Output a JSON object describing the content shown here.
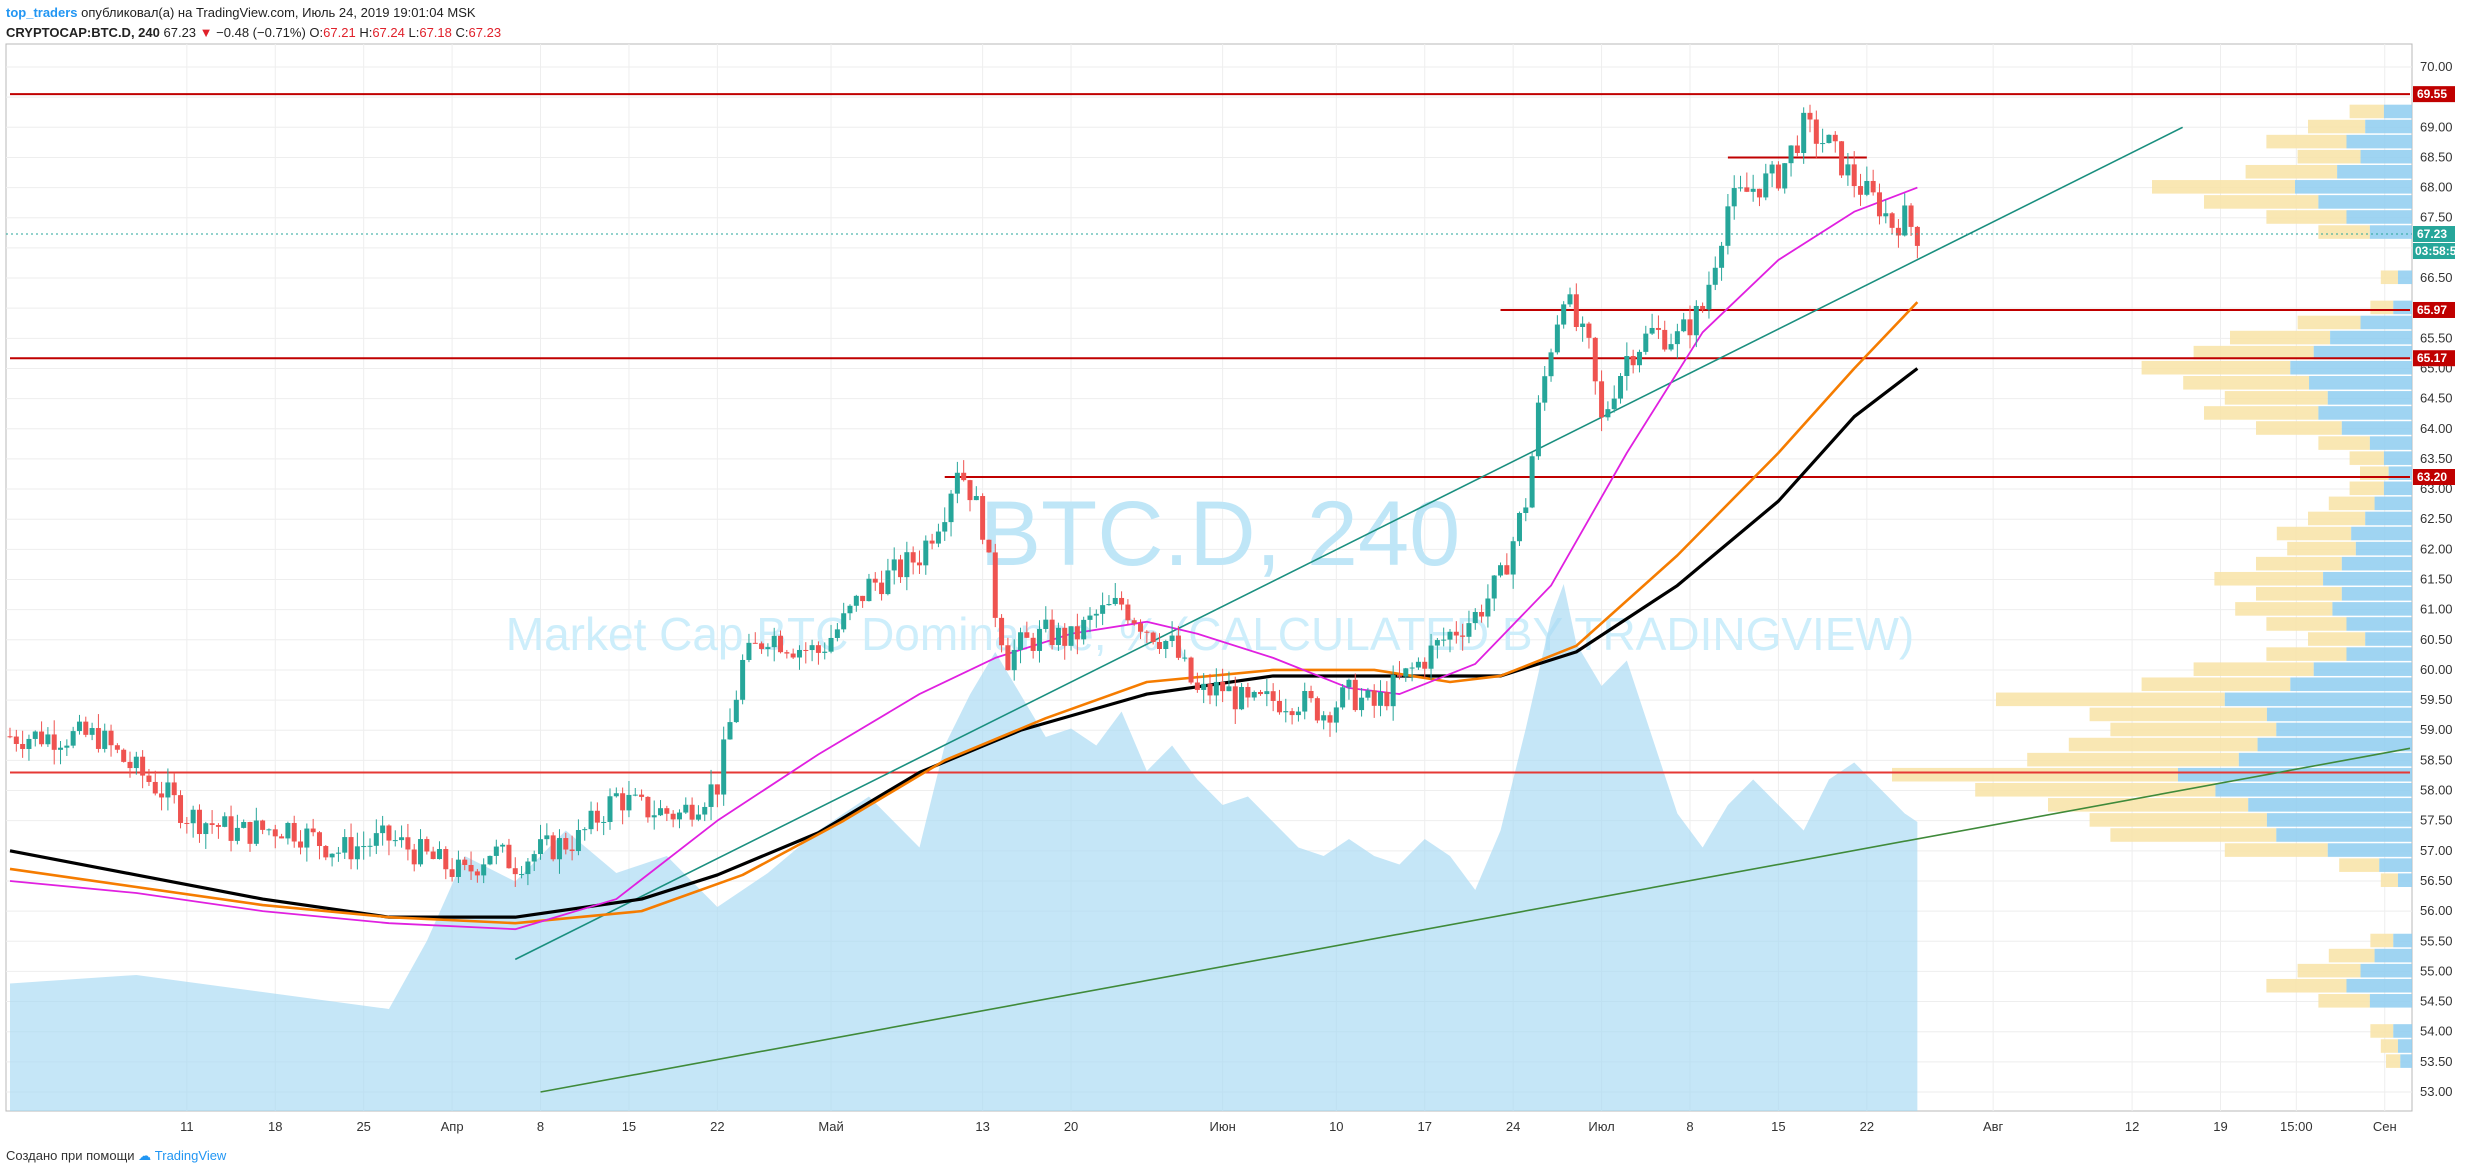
{
  "header": {
    "author": "top_traders",
    "published_text": "опубликовал(а) на TradingView.com, Июль 24, 2019 19:01:04 MSK",
    "symbol": "CRYPTOCAP:BTC.D, 240",
    "last": "67.23",
    "arrow": "▼",
    "change": "−0.48 (−0.71%)",
    "o_label": "O:",
    "o_value": "67.21",
    "h_label": "H:",
    "h_value": "67.24",
    "l_label": "L:",
    "l_value": "67.18",
    "c_label": "C:",
    "c_value": "67.23"
  },
  "watermark": {
    "symbol": "BTC.D, 240",
    "description": "Market Cap BTC Dominance, % (CALCULATED BY TRADINGVIEW)"
  },
  "footer": {
    "created_with": "Создано при помощи",
    "brand": "TradingView"
  },
  "colors": {
    "up": "#26a69a",
    "down": "#ef5350",
    "level": "#c00000",
    "teal_line": "#1a8f7f",
    "green_line": "#3f8a3a",
    "magenta": "#e020e0",
    "orange": "#f57c00",
    "black": "#000000",
    "volume": "#a6d9f3",
    "vp_blue": "#8ecdf0",
    "vp_yellow": "#f8e3a6"
  },
  "chart_data": {
    "type": "candlestick",
    "y_axis": {
      "min": 53.0,
      "max": 70.0,
      "step": 0.5,
      "ticks": [
        "70.00",
        "69.50",
        "69.00",
        "68.50",
        "68.00",
        "67.50",
        "67.00",
        "66.50",
        "66.00",
        "65.50",
        "65.00",
        "64.50",
        "64.00",
        "63.50",
        "63.00",
        "62.50",
        "62.00",
        "61.50",
        "61.00",
        "60.50",
        "60.00",
        "59.50",
        "59.00",
        "58.50",
        "58.00",
        "57.50",
        "57.00",
        "56.50",
        "56.00",
        "55.50",
        "55.00",
        "54.50",
        "54.00",
        "53.50",
        "53.00"
      ]
    },
    "x_axis": {
      "ticks": [
        {
          "label": "11",
          "d": 14
        },
        {
          "label": "18",
          "d": 21
        },
        {
          "label": "25",
          "d": 28
        },
        {
          "label": "Апр",
          "d": 35
        },
        {
          "label": "8",
          "d": 42
        },
        {
          "label": "15",
          "d": 49
        },
        {
          "label": "22",
          "d": 56
        },
        {
          "label": "Май",
          "d": 65
        },
        {
          "label": "13",
          "d": 77
        },
        {
          "label": "20",
          "d": 84
        },
        {
          "label": "Июн",
          "d": 96
        },
        {
          "label": "10",
          "d": 105
        },
        {
          "label": "17",
          "d": 112
        },
        {
          "label": "24",
          "d": 119
        },
        {
          "label": "Июл",
          "d": 126
        },
        {
          "label": "8",
          "d": 133
        },
        {
          "label": "15",
          "d": 140
        },
        {
          "label": "22",
          "d": 147
        },
        {
          "label": "Авг",
          "d": 157
        },
        {
          "label": "12",
          "d": 168
        },
        {
          "label": "19",
          "d": 175
        },
        {
          "label": "15:00",
          "d": 181
        },
        {
          "label": "Сен",
          "d": 188
        }
      ]
    },
    "price_points": [
      [
        7,
        58.9
      ],
      [
        9,
        58.5
      ],
      [
        12,
        58.0
      ],
      [
        14,
        57.6
      ],
      [
        18,
        57.3
      ],
      [
        22,
        57.4
      ],
      [
        26,
        57.0
      ],
      [
        30,
        57.2
      ],
      [
        33,
        56.9
      ],
      [
        36,
        56.6
      ],
      [
        38,
        57.0
      ],
      [
        40,
        56.8
      ],
      [
        42,
        57.0
      ],
      [
        45,
        57.2
      ],
      [
        48,
        57.9
      ],
      [
        50,
        57.7
      ],
      [
        53,
        57.6
      ],
      [
        56,
        58.1
      ],
      [
        58,
        60.1
      ],
      [
        60,
        60.6
      ],
      [
        62,
        60.4
      ],
      [
        64,
        60.3
      ],
      [
        66,
        60.8
      ],
      [
        68,
        61.4
      ],
      [
        70,
        61.6
      ],
      [
        72,
        61.9
      ],
      [
        74,
        62.7
      ],
      [
        75,
        63.4
      ],
      [
        76,
        63.0
      ],
      [
        77,
        62.4
      ],
      [
        78,
        61.0
      ],
      [
        79,
        60.2
      ],
      [
        80,
        60.4
      ],
      [
        82,
        60.6
      ],
      [
        84,
        60.5
      ],
      [
        86,
        60.9
      ],
      [
        88,
        61.1
      ],
      [
        90,
        60.7
      ],
      [
        92,
        60.4
      ],
      [
        94,
        59.6
      ],
      [
        96,
        59.7
      ],
      [
        98,
        59.4
      ],
      [
        100,
        59.5
      ],
      [
        102,
        59.5
      ],
      [
        104,
        59.3
      ],
      [
        106,
        59.6
      ],
      [
        108,
        59.4
      ],
      [
        110,
        59.8
      ],
      [
        112,
        60.2
      ],
      [
        114,
        60.6
      ],
      [
        116,
        60.9
      ],
      [
        118,
        61.5
      ],
      [
        120,
        62.8
      ],
      [
        121,
        64.3
      ],
      [
        122,
        65.4
      ],
      [
        123,
        66.3
      ],
      [
        124,
        65.7
      ],
      [
        125,
        65.3
      ],
      [
        126,
        64.1
      ],
      [
        127,
        64.7
      ],
      [
        128,
        65.2
      ],
      [
        130,
        65.6
      ],
      [
        132,
        65.5
      ],
      [
        134,
        66.0
      ],
      [
        136,
        67.7
      ],
      [
        138,
        68.0
      ],
      [
        140,
        68.2
      ],
      [
        142,
        69.0
      ],
      [
        144,
        68.7
      ],
      [
        146,
        68.1
      ],
      [
        148,
        67.7
      ],
      [
        149,
        67.4
      ],
      [
        150,
        67.5
      ],
      [
        151,
        67.23
      ]
    ],
    "levels": [
      "69.55",
      "65.97",
      "65.17",
      "63.20"
    ],
    "last_price_label": "67.23",
    "countdown_label": "03:58:5",
    "series": [
      {
        "name": "",
        "points": [
          [
            0,
            57.0
          ],
          [
            10,
            56.6
          ],
          [
            20,
            56.2
          ],
          [
            30,
            55.9
          ],
          [
            40,
            55.9
          ],
          [
            50,
            56.2
          ],
          [
            56,
            56.6
          ],
          [
            64,
            57.3
          ],
          [
            72,
            58.3
          ],
          [
            80,
            59.0
          ],
          [
            90,
            59.6
          ],
          [
            100,
            59.9
          ],
          [
            110,
            59.9
          ],
          [
            118,
            59.9
          ],
          [
            124,
            60.3
          ],
          [
            132,
            61.4
          ],
          [
            140,
            62.8
          ],
          [
            146,
            64.2
          ],
          [
            151,
            65.0
          ]
        ]
      },
      {
        "name": "",
        "points": [
          [
            0,
            56.7
          ],
          [
            10,
            56.4
          ],
          [
            20,
            56.1
          ],
          [
            30,
            55.9
          ],
          [
            40,
            55.8
          ],
          [
            50,
            56.0
          ],
          [
            58,
            56.6
          ],
          [
            66,
            57.5
          ],
          [
            74,
            58.5
          ],
          [
            82,
            59.2
          ],
          [
            90,
            59.8
          ],
          [
            100,
            60.0
          ],
          [
            108,
            60.0
          ],
          [
            114,
            59.8
          ],
          [
            118,
            59.9
          ],
          [
            124,
            60.4
          ],
          [
            132,
            61.9
          ],
          [
            140,
            63.6
          ],
          [
            146,
            65.0
          ],
          [
            151,
            66.1
          ]
        ]
      },
      {
        "name": "",
        "points": [
          [
            0,
            56.5
          ],
          [
            10,
            56.3
          ],
          [
            20,
            56.0
          ],
          [
            30,
            55.8
          ],
          [
            40,
            55.7
          ],
          [
            48,
            56.2
          ],
          [
            56,
            57.5
          ],
          [
            64,
            58.6
          ],
          [
            72,
            59.6
          ],
          [
            78,
            60.2
          ],
          [
            84,
            60.6
          ],
          [
            90,
            60.8
          ],
          [
            94,
            60.6
          ],
          [
            100,
            60.2
          ],
          [
            106,
            59.7
          ],
          [
            110,
            59.6
          ],
          [
            116,
            60.1
          ],
          [
            122,
            61.4
          ],
          [
            128,
            63.6
          ],
          [
            134,
            65.6
          ],
          [
            140,
            66.8
          ],
          [
            146,
            67.6
          ],
          [
            151,
            68.0
          ]
        ]
      }
    ],
    "trendlines": [
      {
        "name": "",
        "from": [
          40,
          55.2
        ],
        "to": [
          172,
          69.0
        ]
      },
      {
        "name": "",
        "from": [
          42,
          53.0
        ],
        "to": [
          190,
          58.7
        ]
      }
    ],
    "horizontal_levels": [
      {
        "value": 69.55,
        "from": 0,
        "to": 190
      },
      {
        "value": 65.97,
        "from": 118,
        "to": 190
      },
      {
        "value": 65.17,
        "from": 0,
        "to": 190
      },
      {
        "value": 63.2,
        "from": 74,
        "to": 190
      },
      {
        "value": 58.3,
        "from": 0,
        "to": 190
      },
      {
        "value": 68.5,
        "from": 136,
        "to": 147
      }
    ],
    "volume": [
      [
        0,
        1.5
      ],
      [
        10,
        1.6
      ],
      [
        20,
        1.4
      ],
      [
        30,
        1.2
      ],
      [
        33,
        2.0
      ],
      [
        36,
        3.0
      ],
      [
        40,
        2.7
      ],
      [
        44,
        3.3
      ],
      [
        48,
        2.8
      ],
      [
        52,
        3.0
      ],
      [
        56,
        2.4
      ],
      [
        60,
        2.8
      ],
      [
        64,
        3.3
      ],
      [
        68,
        3.7
      ],
      [
        72,
        3.1
      ],
      [
        74,
        4.3
      ],
      [
        76,
        4.9
      ],
      [
        78,
        5.4
      ],
      [
        80,
        4.9
      ],
      [
        82,
        4.4
      ],
      [
        84,
        4.5
      ],
      [
        86,
        4.3
      ],
      [
        88,
        4.7
      ],
      [
        90,
        4.0
      ],
      [
        92,
        4.3
      ],
      [
        94,
        3.9
      ],
      [
        96,
        3.6
      ],
      [
        98,
        3.7
      ],
      [
        100,
        3.4
      ],
      [
        102,
        3.1
      ],
      [
        104,
        3.0
      ],
      [
        106,
        3.2
      ],
      [
        108,
        3.0
      ],
      [
        110,
        2.9
      ],
      [
        112,
        3.2
      ],
      [
        114,
        3.0
      ],
      [
        116,
        2.6
      ],
      [
        118,
        3.3
      ],
      [
        120,
        4.5
      ],
      [
        122,
        5.8
      ],
      [
        123,
        6.2
      ],
      [
        124,
        5.5
      ],
      [
        126,
        5.0
      ],
      [
        128,
        5.3
      ],
      [
        130,
        4.4
      ],
      [
        132,
        3.5
      ],
      [
        134,
        3.1
      ],
      [
        136,
        3.6
      ],
      [
        138,
        3.9
      ],
      [
        140,
        3.6
      ],
      [
        142,
        3.3
      ],
      [
        144,
        3.9
      ],
      [
        146,
        4.1
      ],
      [
        148,
        3.8
      ],
      [
        150,
        3.5
      ],
      [
        151,
        3.4
      ]
    ],
    "volume_profile": [
      [
        69.25,
        0.12
      ],
      [
        69.0,
        0.2
      ],
      [
        68.75,
        0.28
      ],
      [
        68.5,
        0.22
      ],
      [
        68.25,
        0.32
      ],
      [
        68.0,
        0.5
      ],
      [
        67.75,
        0.4
      ],
      [
        67.5,
        0.28
      ],
      [
        67.25,
        0.18
      ],
      [
        66.5,
        0.06
      ],
      [
        66.0,
        0.08
      ],
      [
        65.75,
        0.22
      ],
      [
        65.5,
        0.35
      ],
      [
        65.25,
        0.42
      ],
      [
        65.0,
        0.52
      ],
      [
        64.75,
        0.44
      ],
      [
        64.5,
        0.36
      ],
      [
        64.25,
        0.4
      ],
      [
        64.0,
        0.3
      ],
      [
        63.75,
        0.18
      ],
      [
        63.5,
        0.12
      ],
      [
        63.25,
        0.1
      ],
      [
        63.0,
        0.12
      ],
      [
        62.75,
        0.16
      ],
      [
        62.5,
        0.2
      ],
      [
        62.25,
        0.26
      ],
      [
        62.0,
        0.24
      ],
      [
        61.75,
        0.3
      ],
      [
        61.5,
        0.38
      ],
      [
        61.25,
        0.3
      ],
      [
        61.0,
        0.34
      ],
      [
        60.75,
        0.28
      ],
      [
        60.5,
        0.2
      ],
      [
        60.25,
        0.28
      ],
      [
        60.0,
        0.42
      ],
      [
        59.75,
        0.52
      ],
      [
        59.5,
        0.8
      ],
      [
        59.25,
        0.62
      ],
      [
        59.0,
        0.58
      ],
      [
        58.75,
        0.66
      ],
      [
        58.5,
        0.74
      ],
      [
        58.25,
        1.0
      ],
      [
        58.0,
        0.84
      ],
      [
        57.75,
        0.7
      ],
      [
        57.5,
        0.62
      ],
      [
        57.25,
        0.58
      ],
      [
        57.0,
        0.36
      ],
      [
        56.75,
        0.14
      ],
      [
        56.5,
        0.06
      ],
      [
        55.5,
        0.08
      ],
      [
        55.25,
        0.16
      ],
      [
        55.0,
        0.22
      ],
      [
        54.75,
        0.28
      ],
      [
        54.5,
        0.18
      ],
      [
        54.0,
        0.08
      ],
      [
        53.75,
        0.06
      ],
      [
        53.5,
        0.05
      ]
    ]
  }
}
